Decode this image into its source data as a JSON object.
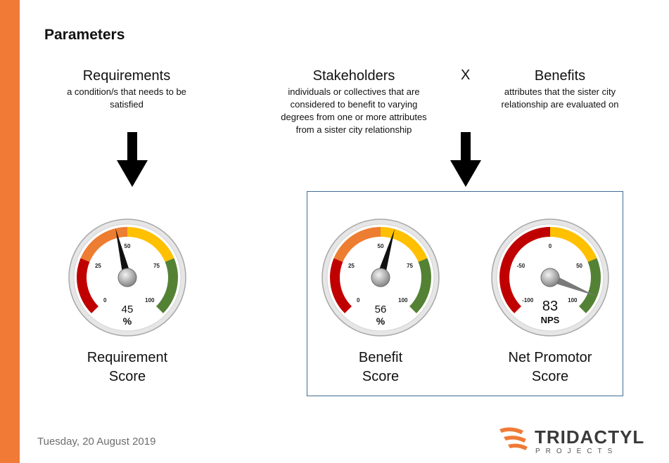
{
  "page": {
    "title": "Parameters"
  },
  "columns": {
    "requirements": {
      "heading": "Requirements",
      "description": "a condition/s that needs to be satisfied"
    },
    "stakeholders": {
      "heading": "Stakeholders",
      "description": "individuals or collectives that are considered to benefit to varying degrees from one or more attributes from a sister city relationship"
    },
    "operator": "X",
    "benefits": {
      "heading": "Benefits",
      "description": "attributes that the sister city relationship are evaluated on"
    }
  },
  "gauges": [
    {
      "id": "requirement",
      "label_line1": "Requirement",
      "label_line2": "Score",
      "value": 45,
      "value_text": "45",
      "unit": "%",
      "min": 0,
      "max": 100,
      "ticks": [
        "0",
        "25",
        "50",
        "75",
        "100"
      ],
      "needle": "black"
    },
    {
      "id": "benefit",
      "label_line1": "Benefit",
      "label_line2": "Score",
      "value": 56,
      "value_text": "56",
      "unit": "%",
      "min": 0,
      "max": 100,
      "ticks": [
        "0",
        "25",
        "50",
        "75",
        "100"
      ],
      "needle": "black"
    },
    {
      "id": "nps",
      "label_line1": "Net Promotor",
      "label_line2": "Score",
      "value": 83,
      "value_text": "83",
      "unit": "NPS",
      "min": -100,
      "max": 100,
      "ticks": [
        "-100",
        "-50",
        "0",
        "50",
        "100"
      ],
      "needle": "gray"
    }
  ],
  "footer": {
    "date": "Tuesday, 20 August 2019"
  },
  "logo": {
    "name": "TRIDACTYL",
    "tagline": "PROJECTS"
  },
  "colors": {
    "accent_bar": "#f07a36",
    "red": "#c00000",
    "orange": "#ed7d31",
    "yellow": "#ffc000",
    "green": "#548235",
    "box_border": "#3f6d93"
  }
}
